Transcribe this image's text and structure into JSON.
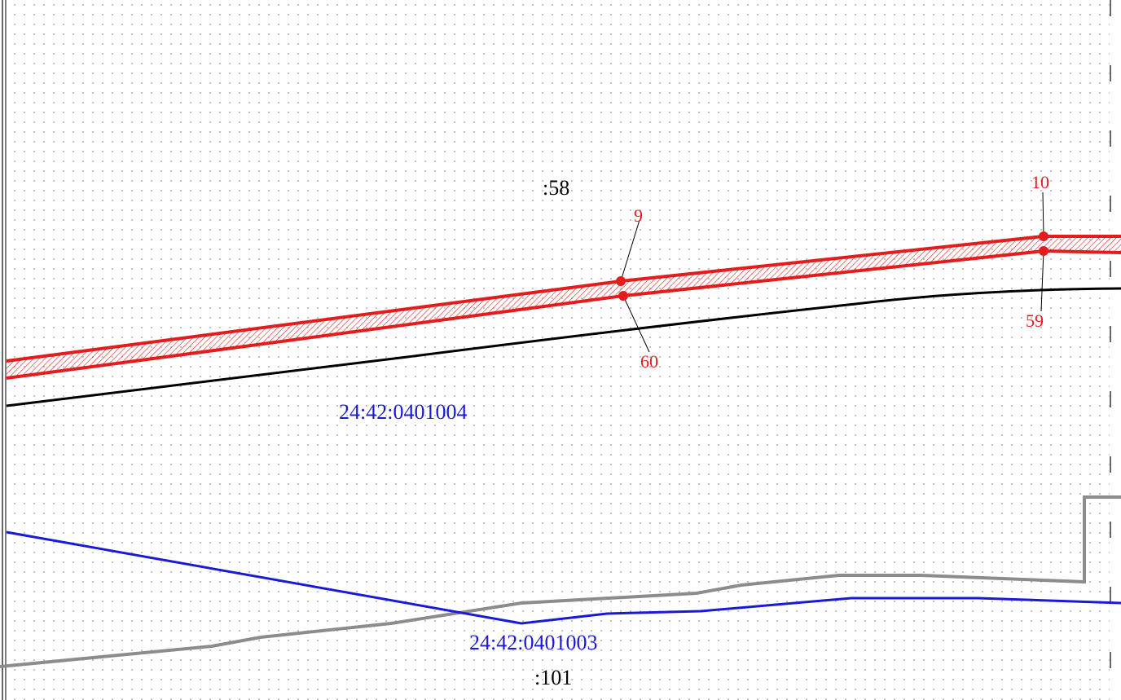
{
  "map": {
    "labels": {
      "parcel_58": ":58",
      "parcel_101": ":101",
      "quarter_north": "24:42:0401004",
      "quarter_south": "24:42:0401003"
    },
    "points": {
      "p9": "9",
      "p10": "10",
      "p59": "59",
      "p60": "60"
    },
    "colors": {
      "zone": "#e31d1d",
      "parcel_boundary": "#000000",
      "quarter_boundary": "#1a1ad6",
      "other_boundary": "#8c8c8c",
      "quarter_label": "#1a1ad6",
      "point_label": "#e31d1d",
      "parcel_label": "#000000",
      "grid": "#9a9a9a"
    }
  }
}
